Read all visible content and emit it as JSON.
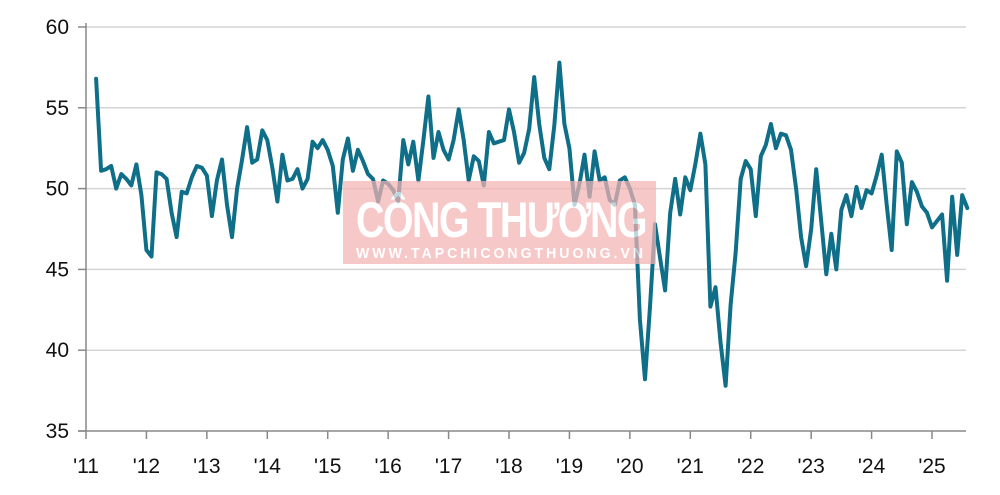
{
  "chart_data": {
    "type": "line",
    "title": "",
    "xlabel": "",
    "ylabel": "",
    "ylim": [
      35,
      60
    ],
    "yticks": [
      "35",
      "40",
      "45",
      "50",
      "55",
      "60"
    ],
    "xticks": [
      "'11",
      "'12",
      "'13",
      "'14",
      "'15",
      "'16",
      "'17",
      "'18",
      "'19",
      "'20",
      "'21",
      "'22",
      "'23",
      "'24",
      "'25"
    ],
    "x_start": "2011-03",
    "x_end": "2025-08",
    "frequency": "monthly",
    "grid": "horizontal",
    "line_color": "#0f6e88",
    "series": [
      {
        "values": [
          56.8,
          51.1,
          51.2,
          51.4,
          50.0,
          50.9,
          50.6,
          50.2,
          51.5,
          49.6,
          46.2,
          45.8,
          51.0,
          50.9,
          50.6,
          48.5,
          47.0,
          49.8,
          49.7,
          50.7,
          51.4,
          51.3,
          50.8,
          48.3,
          50.5,
          51.8,
          49.0,
          47.0,
          50.0,
          51.8,
          53.8,
          51.6,
          51.8,
          53.6,
          53.0,
          51.3,
          49.2,
          52.1,
          50.5,
          50.6,
          51.2,
          50.0,
          50.6,
          52.9,
          52.5,
          53.0,
          52.4,
          51.4,
          48.5,
          51.8,
          53.1,
          51.1,
          52.4,
          51.7,
          50.9,
          50.6,
          49.2,
          50.5,
          50.3,
          49.9,
          49.2,
          53.0,
          51.5,
          52.9,
          50.5,
          53.0,
          55.7,
          51.9,
          53.5,
          52.4,
          51.8,
          53.0,
          54.9,
          53.0,
          50.5,
          52.0,
          51.7,
          50.2,
          53.5,
          52.8,
          52.9,
          53.0,
          54.9,
          53.5,
          51.6,
          52.2,
          53.7,
          56.9,
          54.0,
          51.9,
          51.2,
          53.9,
          57.8,
          54.0,
          52.5,
          49.0,
          50.3,
          52.1,
          49.5,
          52.3,
          50.5,
          50.7,
          49.3,
          49.0,
          50.5,
          50.7,
          50.0,
          49.0,
          41.9,
          38.2,
          42.7,
          47.8,
          45.7,
          43.7,
          48.5,
          50.6,
          48.4,
          50.7,
          49.9,
          51.5,
          53.4,
          51.5,
          42.7,
          43.9,
          40.5,
          37.8,
          42.8,
          46.0,
          50.6,
          51.7,
          51.2,
          48.3,
          52.0,
          52.7,
          54.0,
          52.5,
          53.4,
          53.3,
          52.4,
          50.0,
          47.0,
          45.2,
          47.5,
          51.2,
          48.0,
          44.7,
          47.2,
          45.0,
          48.7,
          49.6,
          48.3,
          50.1,
          48.8,
          49.9,
          49.7,
          50.8,
          52.1,
          49.0,
          46.2,
          52.3,
          51.6,
          47.8,
          50.4,
          49.8,
          48.9,
          48.5,
          47.6,
          48.0,
          48.4,
          44.3,
          49.5,
          45.9,
          49.6,
          48.8
        ]
      }
    ]
  },
  "watermark": {
    "title": "CÔNG THƯƠNG",
    "url": "WWW.TAPCHICONGTHUONG.VN",
    "color": "#f4b4b4"
  }
}
